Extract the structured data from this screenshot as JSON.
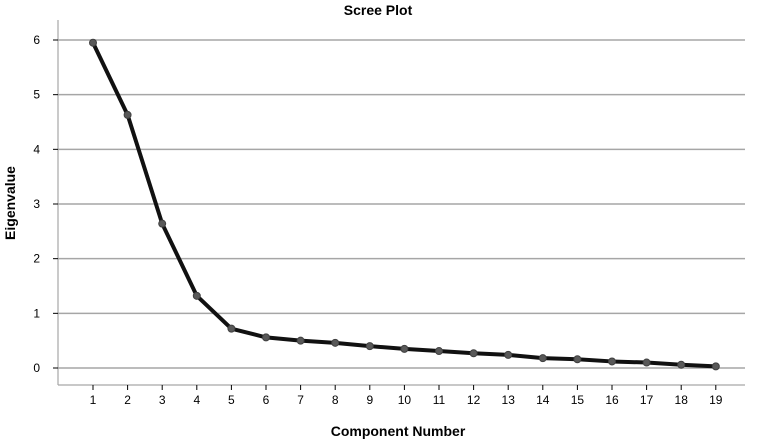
{
  "chart_data": {
    "type": "line",
    "title": "Scree Plot",
    "xlabel": "Component Number",
    "ylabel": "Eigenvalue",
    "x": [
      1,
      2,
      3,
      4,
      5,
      6,
      7,
      8,
      9,
      10,
      11,
      12,
      13,
      14,
      15,
      16,
      17,
      18,
      19
    ],
    "y_ticks": [
      0,
      1,
      2,
      3,
      4,
      5,
      6
    ],
    "ylim": [
      -0.2,
      6.3
    ],
    "xlim": [
      0,
      20
    ],
    "grid": "horizontal",
    "series": [
      {
        "values": [
          5.95,
          4.63,
          2.64,
          1.32,
          0.72,
          0.56,
          0.5,
          0.46,
          0.4,
          0.35,
          0.31,
          0.27,
          0.24,
          0.18,
          0.16,
          0.12,
          0.1,
          0.06,
          0.03
        ],
        "line_color": "#111111",
        "marker_color": "#595959"
      }
    ]
  }
}
